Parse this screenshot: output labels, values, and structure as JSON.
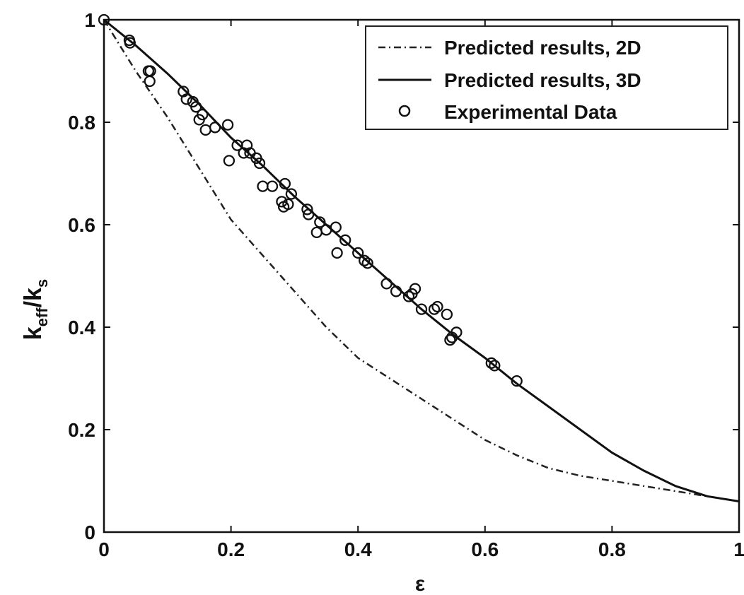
{
  "chart_data": {
    "type": "line",
    "xlabel": "ε",
    "ylabel_main": "k",
    "ylabel_sub1": "eff",
    "ylabel_sep": "/k",
    "ylabel_sub2": "s",
    "xlim": [
      0,
      1
    ],
    "ylim": [
      0,
      1
    ],
    "xticks": [
      0,
      0.2,
      0.4,
      0.6,
      0.8,
      1
    ],
    "yticks": [
      0,
      0.2,
      0.4,
      0.6,
      0.8,
      1
    ],
    "xtick_labels": [
      "0",
      "0.2",
      "0.4",
      "0.6",
      "0.8",
      "1"
    ],
    "ytick_labels": [
      "0",
      "0.2",
      "0.4",
      "0.6",
      "0.8",
      "1"
    ],
    "legend_position": "top-right",
    "series": [
      {
        "name": "Predicted results, 2D",
        "style": "dash-dot",
        "color": "#222222",
        "x": [
          0,
          0.05,
          0.1,
          0.15,
          0.2,
          0.25,
          0.3,
          0.35,
          0.4,
          0.45,
          0.5,
          0.55,
          0.6,
          0.65,
          0.7,
          0.75,
          0.8,
          0.85,
          0.9,
          0.95,
          1.0
        ],
        "y": [
          1.0,
          0.9,
          0.81,
          0.71,
          0.61,
          0.54,
          0.47,
          0.4,
          0.34,
          0.3,
          0.26,
          0.22,
          0.18,
          0.15,
          0.125,
          0.11,
          0.1,
          0.09,
          0.08,
          0.07,
          0.06
        ]
      },
      {
        "name": "Predicted results, 3D",
        "style": "solid",
        "color": "#111111",
        "x": [
          0,
          0.05,
          0.1,
          0.15,
          0.2,
          0.25,
          0.3,
          0.35,
          0.4,
          0.45,
          0.5,
          0.55,
          0.6,
          0.65,
          0.7,
          0.75,
          0.8,
          0.85,
          0.9,
          0.95,
          1.0
        ],
        "y": [
          1.0,
          0.95,
          0.895,
          0.835,
          0.77,
          0.715,
          0.655,
          0.6,
          0.545,
          0.49,
          0.435,
          0.385,
          0.34,
          0.29,
          0.245,
          0.2,
          0.155,
          0.12,
          0.09,
          0.07,
          0.06
        ]
      },
      {
        "name": "Experimental Data",
        "style": "markers",
        "color": "#111111",
        "points": [
          [
            0.0,
            1.0
          ],
          [
            0.04,
            0.96
          ],
          [
            0.041,
            0.955
          ],
          [
            0.07,
            0.9
          ],
          [
            0.072,
            0.88
          ],
          [
            0.073,
            0.9
          ],
          [
            0.125,
            0.86
          ],
          [
            0.13,
            0.845
          ],
          [
            0.14,
            0.84
          ],
          [
            0.145,
            0.83
          ],
          [
            0.15,
            0.805
          ],
          [
            0.155,
            0.815
          ],
          [
            0.16,
            0.785
          ],
          [
            0.175,
            0.79
          ],
          [
            0.195,
            0.795
          ],
          [
            0.197,
            0.725
          ],
          [
            0.21,
            0.755
          ],
          [
            0.22,
            0.74
          ],
          [
            0.225,
            0.755
          ],
          [
            0.23,
            0.74
          ],
          [
            0.24,
            0.73
          ],
          [
            0.245,
            0.72
          ],
          [
            0.25,
            0.675
          ],
          [
            0.265,
            0.675
          ],
          [
            0.28,
            0.645
          ],
          [
            0.283,
            0.635
          ],
          [
            0.285,
            0.68
          ],
          [
            0.29,
            0.64
          ],
          [
            0.295,
            0.66
          ],
          [
            0.32,
            0.63
          ],
          [
            0.322,
            0.62
          ],
          [
            0.335,
            0.585
          ],
          [
            0.34,
            0.605
          ],
          [
            0.35,
            0.59
          ],
          [
            0.365,
            0.595
          ],
          [
            0.367,
            0.545
          ],
          [
            0.38,
            0.57
          ],
          [
            0.4,
            0.545
          ],
          [
            0.41,
            0.53
          ],
          [
            0.415,
            0.525
          ],
          [
            0.445,
            0.485
          ],
          [
            0.46,
            0.47
          ],
          [
            0.48,
            0.46
          ],
          [
            0.485,
            0.465
          ],
          [
            0.49,
            0.475
          ],
          [
            0.5,
            0.435
          ],
          [
            0.52,
            0.435
          ],
          [
            0.525,
            0.44
          ],
          [
            0.54,
            0.425
          ],
          [
            0.545,
            0.375
          ],
          [
            0.548,
            0.38
          ],
          [
            0.555,
            0.39
          ],
          [
            0.61,
            0.33
          ],
          [
            0.615,
            0.325
          ],
          [
            0.65,
            0.295
          ]
        ]
      }
    ]
  }
}
